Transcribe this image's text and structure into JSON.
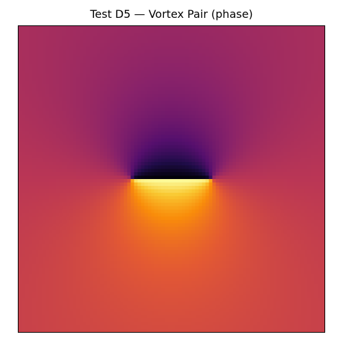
{
  "chart_data": {
    "type": "heatmap",
    "title": "Test D5 — Vortex Pair (phase)",
    "xlabel": "",
    "ylabel": "",
    "colormap": "inferno",
    "grid": false,
    "axes_ticks": false,
    "resolution": [
      90,
      90
    ],
    "field": "phase",
    "value_range": [
      -3.14159,
      3.14159
    ],
    "vortices": [
      {
        "charge": 1,
        "x": -0.26,
        "y": 0.0
      },
      {
        "charge": -1,
        "x": 0.26,
        "y": 0.0
      }
    ]
  }
}
